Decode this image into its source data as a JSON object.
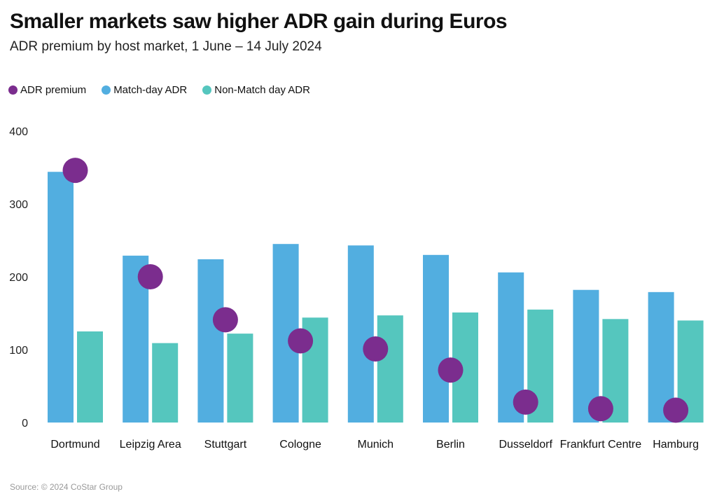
{
  "chart_data": {
    "type": "bar",
    "title": "Smaller markets saw higher ADR gain during Euros",
    "subtitle": "ADR premium by host market, 1 June – 14 July 2024",
    "xlabel": "",
    "ylabel": "",
    "ylim": [
      0,
      400
    ],
    "yticks": [
      0,
      100,
      200,
      300,
      400
    ],
    "grid": false,
    "legend_position": "top-left",
    "categories": [
      "Dortmund",
      "Leipzig Area",
      "Stuttgart",
      "Cologne",
      "Munich",
      "Berlin",
      "Dusseldorf",
      "Frankfurt Centre",
      "Hamburg"
    ],
    "series": [
      {
        "name": "ADR premium",
        "kind": "dot",
        "color": "#7b2d8e",
        "values": [
          346,
          200,
          141,
          112,
          101,
          72,
          28,
          19,
          17
        ]
      },
      {
        "name": "Match-day ADR",
        "kind": "bar",
        "color": "#52aee0",
        "values": [
          344,
          229,
          224,
          245,
          243,
          230,
          206,
          182,
          179
        ]
      },
      {
        "name": "Non-Match day ADR",
        "kind": "bar",
        "color": "#55c6be",
        "values": [
          125,
          109,
          122,
          144,
          147,
          151,
          155,
          142,
          140
        ]
      }
    ],
    "source": "Source: © 2024 CoStar Group"
  }
}
